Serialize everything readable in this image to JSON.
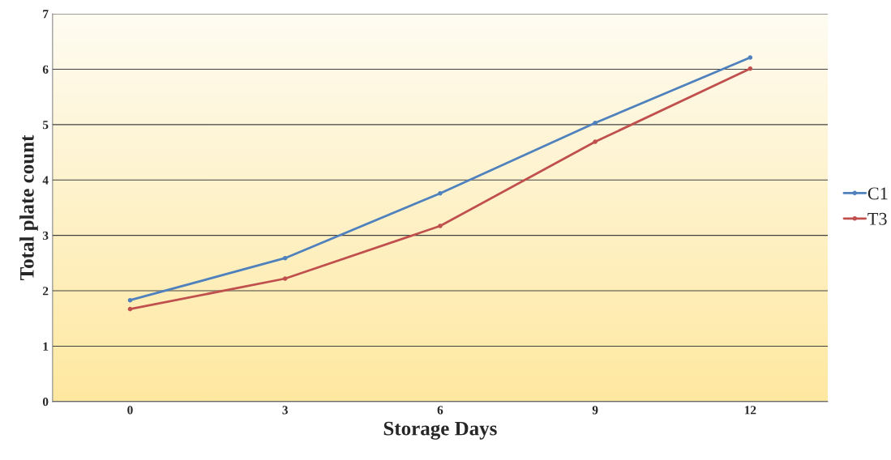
{
  "chart_data": {
    "type": "line",
    "xlabel": "Storage Days",
    "ylabel": "Total plate count",
    "categories": [
      "0",
      "3",
      "6",
      "9",
      "12"
    ],
    "series": [
      {
        "name": "C1",
        "color": "#4f81bd",
        "values": [
          1.83,
          2.59,
          3.76,
          5.03,
          6.21
        ]
      },
      {
        "name": "T3",
        "color": "#c0504d",
        "values": [
          1.67,
          2.22,
          3.17,
          4.69,
          6.01
        ]
      }
    ],
    "ylim": [
      0,
      7
    ],
    "yticks": [
      0,
      1,
      2,
      3,
      4,
      5,
      6,
      7
    ],
    "grid": "y",
    "legend": "right",
    "marker": "circle",
    "line_style": "solid"
  }
}
